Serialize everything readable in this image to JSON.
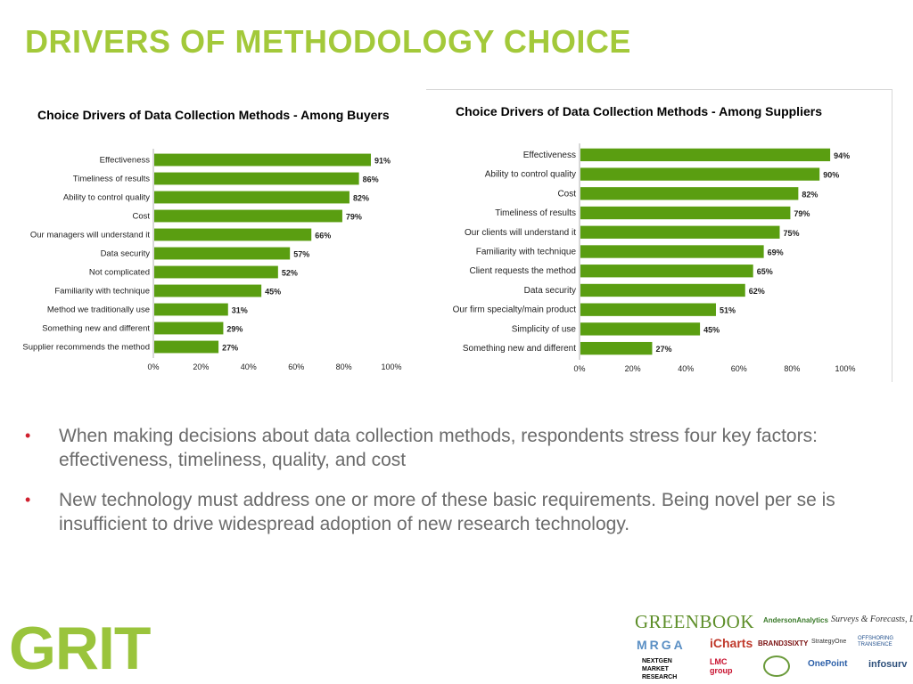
{
  "page": {
    "title": "DRIVERS OF METHODOLOGY CHOICE",
    "bullets": [
      "When making decisions about data collection methods, respondents stress four key factors: effectiveness, timeliness, quality, and cost",
      "New technology must address one or more of these basic requirements. Being novel per se is insufficient to drive widespread adoption of new research technology."
    ],
    "logo_text": "GRIT",
    "sponsors": [
      "GREENBOOK",
      "AndersonAnalytics",
      "Surveys & Forecasts, LLC",
      "MRGA",
      "iCharts",
      "BRAND3SIXTY",
      "StrategyOne",
      "OFFSHORING TRANSIENCE",
      "NEXTGEN MARKET RESEARCH",
      "LMC group",
      "OnePoint",
      "infosurv"
    ],
    "colors": {
      "accent": "#a3c93a",
      "bar": "#5a9e11",
      "bullet": "#d0202e",
      "text": "#6b6b6b"
    }
  },
  "chart_data": [
    {
      "type": "bar",
      "orientation": "horizontal",
      "title": "Choice Drivers of Data Collection Methods - Among Buyers",
      "categories": [
        "Effectiveness",
        "Timeliness of results",
        "Ability to control quality",
        "Cost",
        "Our managers will understand it",
        "Data security",
        "Not complicated",
        "Familiarity with technique",
        "Method we traditionally use",
        "Something new and different",
        "Supplier recommends the method"
      ],
      "values": [
        91,
        86,
        82,
        79,
        66,
        57,
        52,
        45,
        31,
        29,
        27
      ],
      "value_labels": [
        "91%",
        "86%",
        "82%",
        "79%",
        "66%",
        "57%",
        "52%",
        "45%",
        "31%",
        "29%",
        "27%"
      ],
      "xlim": [
        0,
        100
      ],
      "ticks": [
        "0%",
        "20%",
        "40%",
        "60%",
        "80%",
        "100%"
      ],
      "grid": false,
      "legend": "none"
    },
    {
      "type": "bar",
      "orientation": "horizontal",
      "title": "Choice Drivers of Data Collection Methods - Among Suppliers",
      "categories": [
        "Effectiveness",
        "Ability to control quality",
        "Cost",
        "Timeliness of results",
        "Our clients will understand it",
        "Familiarity with technique",
        "Client requests the method",
        "Data security",
        "Our firm specialty/main product",
        "Simplicity of use",
        "Something new and different"
      ],
      "values": [
        94,
        90,
        82,
        79,
        75,
        69,
        65,
        62,
        51,
        45,
        27
      ],
      "value_labels": [
        "94%",
        "90%",
        "82%",
        "79%",
        "75%",
        "69%",
        "65%",
        "62%",
        "51%",
        "45%",
        "27%"
      ],
      "xlim": [
        0,
        100
      ],
      "ticks": [
        "0%",
        "20%",
        "40%",
        "60%",
        "80%",
        "100%"
      ],
      "grid": false,
      "legend": "none"
    }
  ]
}
